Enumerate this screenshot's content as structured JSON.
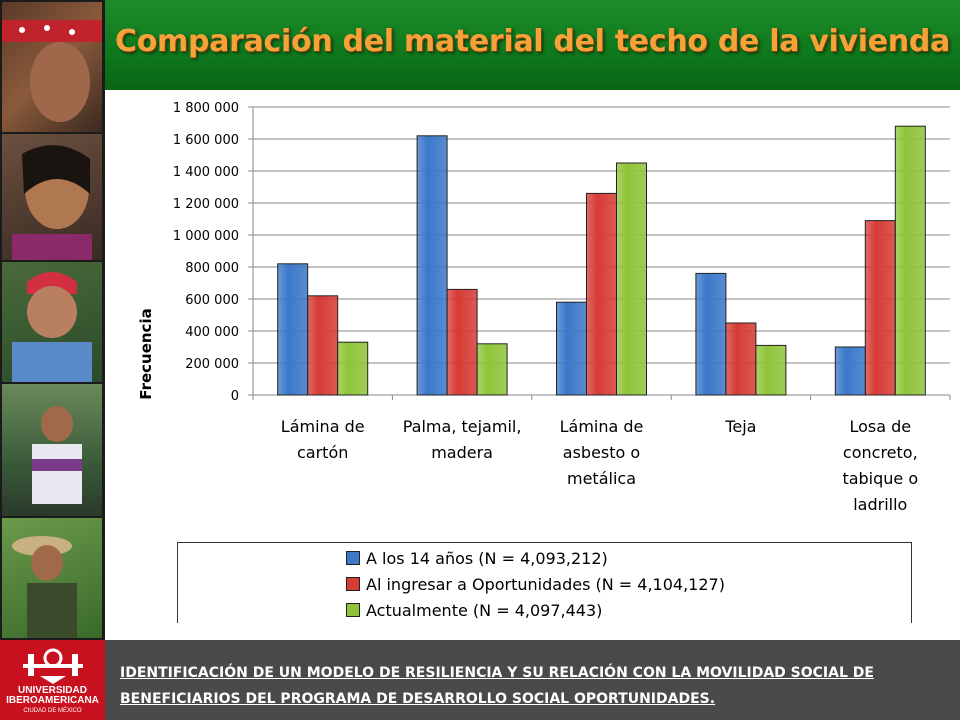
{
  "header": {
    "title": "Comparación del material del techo de la vivienda"
  },
  "chart_data": {
    "type": "bar",
    "categories": [
      [
        "Lámina de",
        "cartón"
      ],
      [
        "Palma, tejamil,",
        "madera"
      ],
      [
        "Lámina de",
        "asbesto o",
        "metálica"
      ],
      [
        "Teja"
      ],
      [
        "Losa de",
        "concreto,",
        "tabique o",
        "ladrillo"
      ]
    ],
    "series": [
      {
        "name": "A los 14 años (N = 4,093,212)",
        "color": "#3b78c9",
        "values": [
          820000,
          1620000,
          580000,
          760000,
          300000
        ]
      },
      {
        "name": "Al ingresar a Oportunidades (N = 4,104,127)",
        "color": "#d63b35",
        "values": [
          620000,
          660000,
          1260000,
          450000,
          1090000
        ]
      },
      {
        "name": "Actualmente (N = 4,097,443)",
        "color": "#8fc43a",
        "values": [
          330000,
          320000,
          1450000,
          310000,
          1680000
        ]
      }
    ],
    "ylabel": "Frecuencia",
    "ylim": [
      0,
      1800000
    ],
    "yticks": [
      "0",
      "200 000",
      "400 000",
      "600 000",
      "800 000",
      "1 000 000",
      "1 200 000",
      "1 400 000",
      "1 600 000",
      "1 800 000"
    ],
    "grid": true,
    "legend": "bottom"
  },
  "footer": {
    "line1": "IDENTIFICACIÓN DE UN MODELO DE RESILIENCIA Y SU RELACIÓN CON LA MOVILIDAD SOCIAL DE",
    "line2": "BENEFICIARIOS DEL PROGRAMA DE DESARROLLO SOCIAL OPORTUNIDADES.",
    "logo_line1": "UNIVERSIDAD",
    "logo_line2": "IBEROAMERICANA",
    "logo_sub": "CIUDAD DE MÉXICO"
  },
  "photos": [
    "portrait-photo-red-bandana",
    "portrait-photo-woman-braids",
    "portrait-photo-man-red-cap",
    "portrait-photo-woman-mountains",
    "portrait-photo-man-field"
  ]
}
